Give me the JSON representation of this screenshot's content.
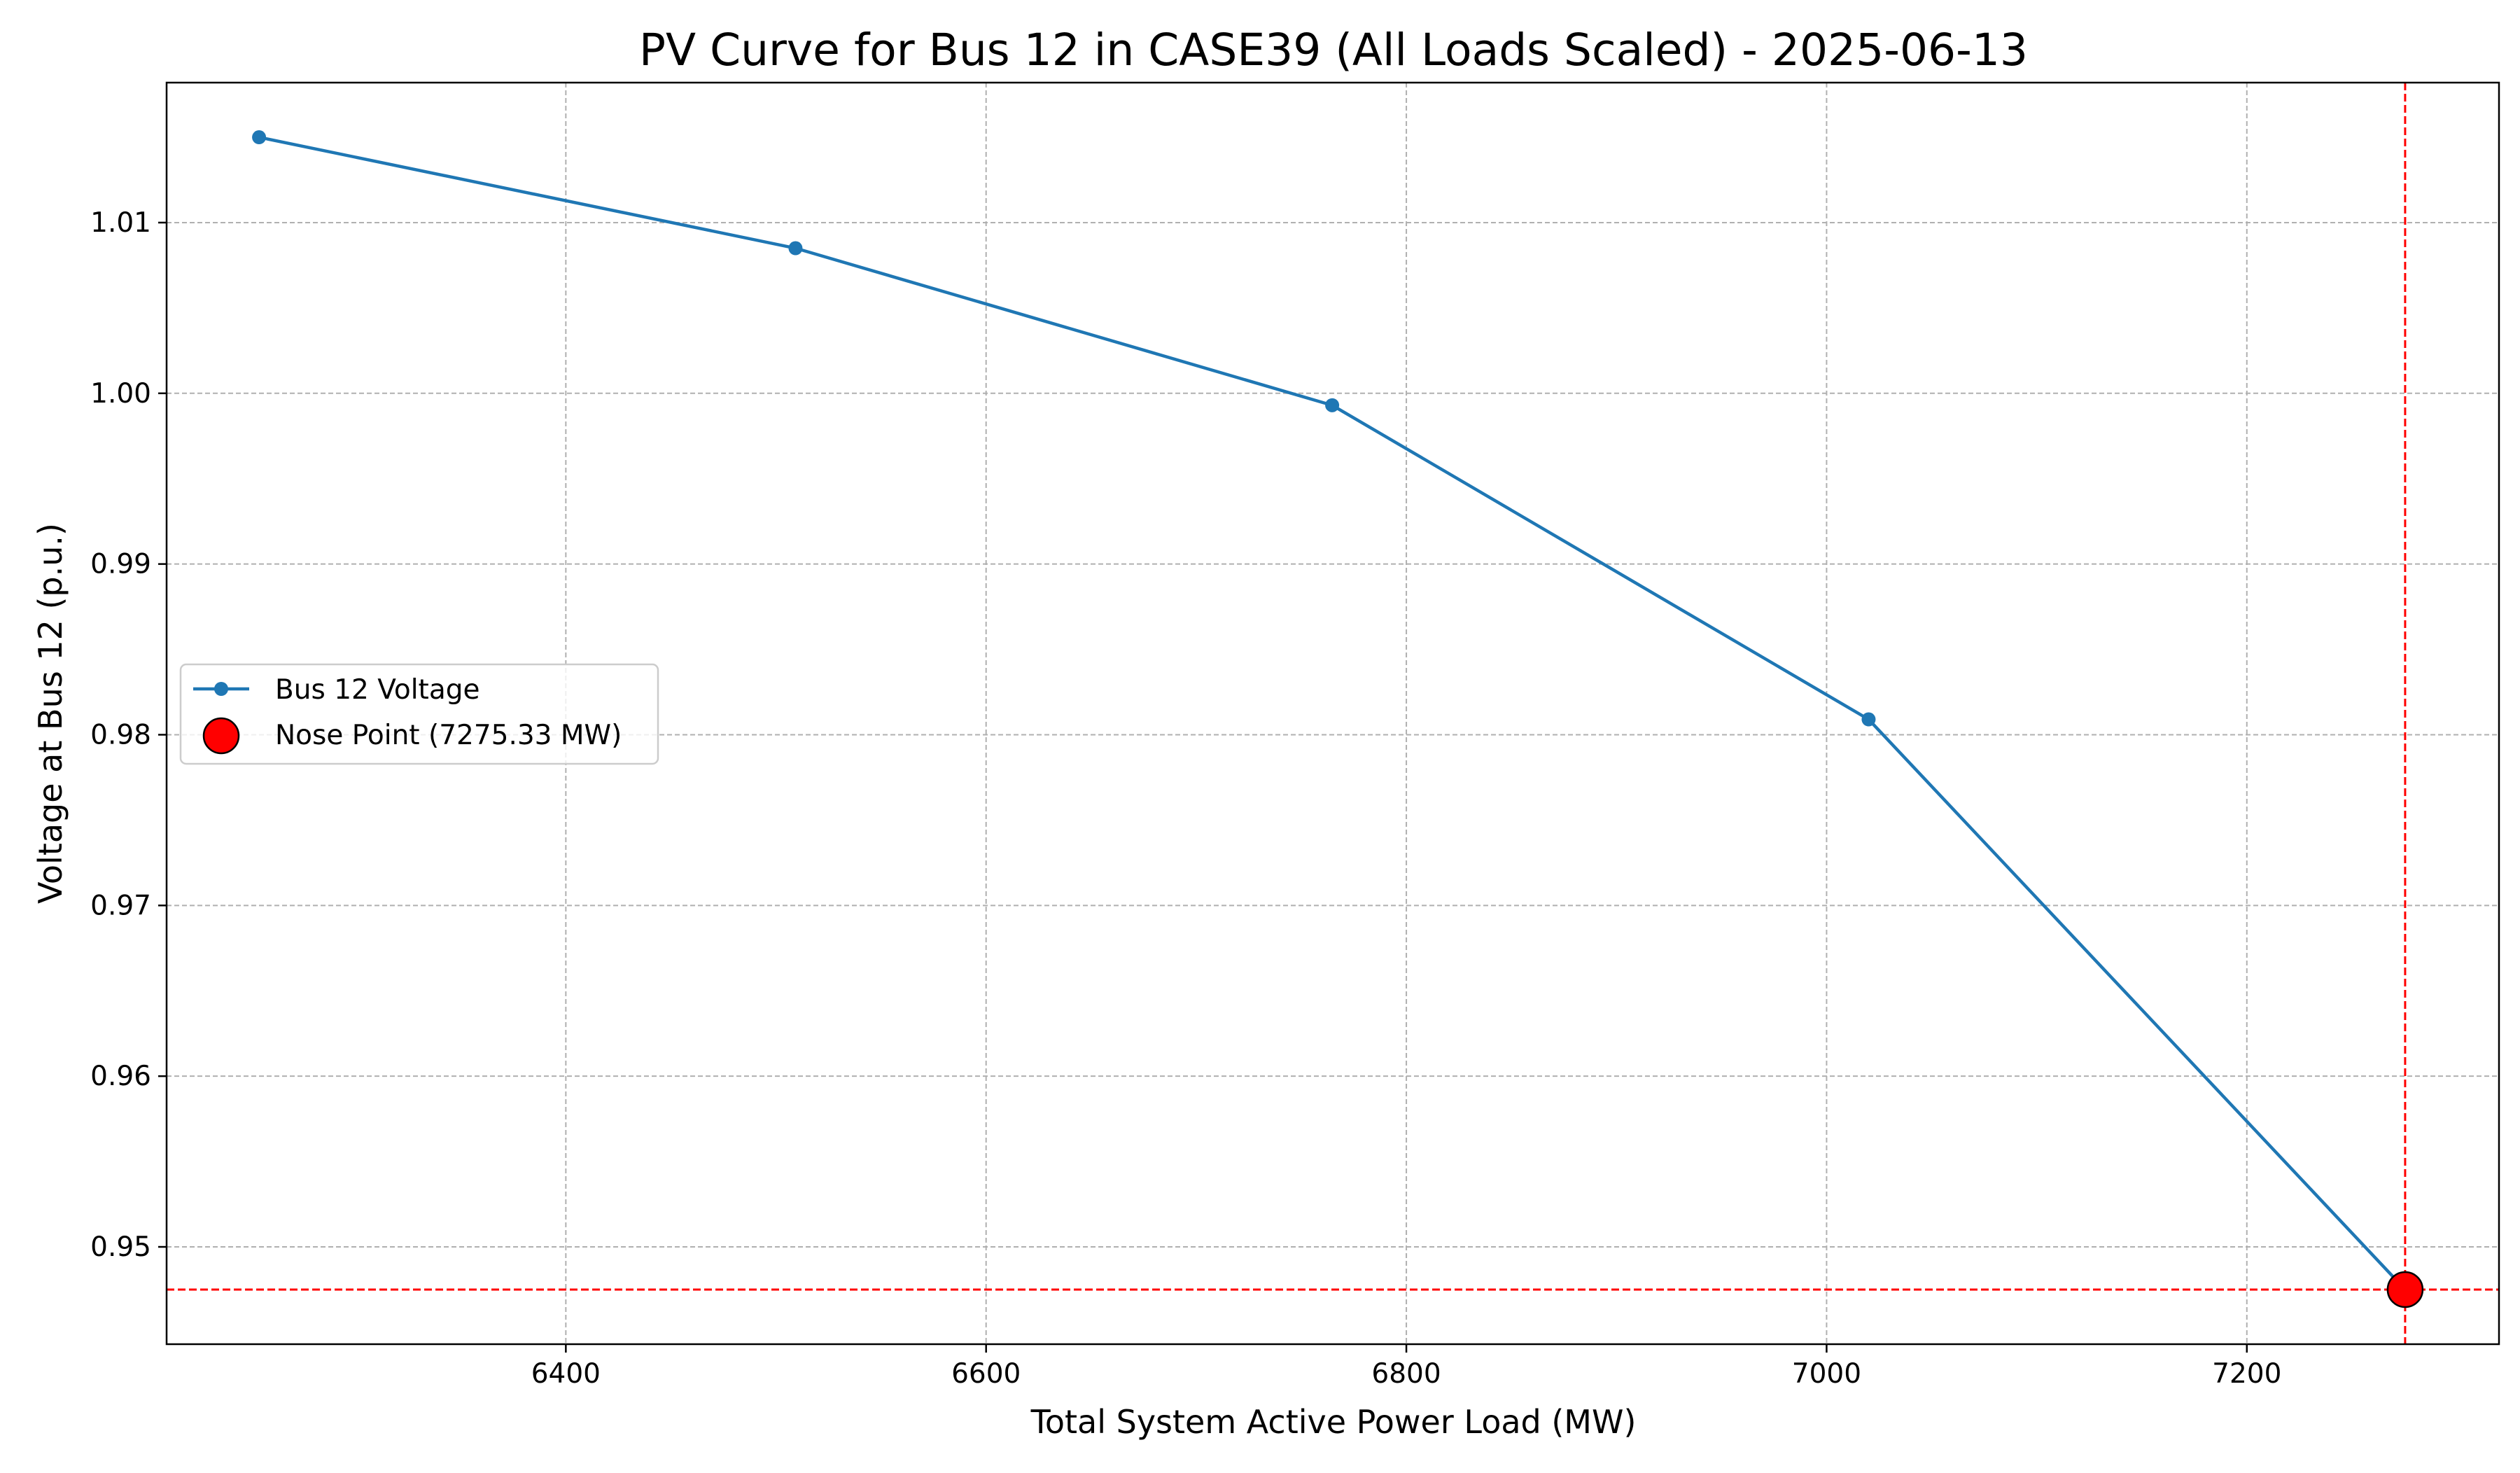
{
  "chart_data": {
    "type": "line",
    "title": "PV Curve for Bus 12 in CASE39 (All Loads Scaled) - 2025-06-13",
    "xlabel": "Total System Active Power Load (MW)",
    "ylabel": "Voltage at Bus 12 (p.u.)",
    "xlim": [
      6210,
      7320
    ],
    "ylim": [
      0.9443,
      1.0182
    ],
    "xticks": [
      6400,
      6600,
      6800,
      7000,
      7200
    ],
    "xtick_labels": [
      "6400",
      "6600",
      "6800",
      "7000",
      "7200"
    ],
    "yticks": [
      0.95,
      0.96,
      0.97,
      0.98,
      0.99,
      1.0,
      1.01
    ],
    "ytick_labels": [
      "0.95",
      "0.96",
      "0.97",
      "0.98",
      "0.99",
      "1.00",
      "1.01"
    ],
    "grid": true,
    "legend_position": "center-left",
    "series": [
      {
        "name": "Bus 12 Voltage",
        "color": "#1f77b4",
        "marker": "circle",
        "x": [
          6254.0,
          6509.3,
          6764.7,
          7020.0,
          7275.33
        ],
        "y": [
          1.015,
          1.0085,
          0.9993,
          0.9809,
          0.9475
        ]
      }
    ],
    "nose_point": {
      "name": "Nose Point (7275.33 MW)",
      "x": 7275.33,
      "y": 0.9475,
      "color": "#ff0000",
      "edge_color": "#000000",
      "reference_lines": "dashed",
      "reference_line_color": "#ff0000"
    }
  }
}
